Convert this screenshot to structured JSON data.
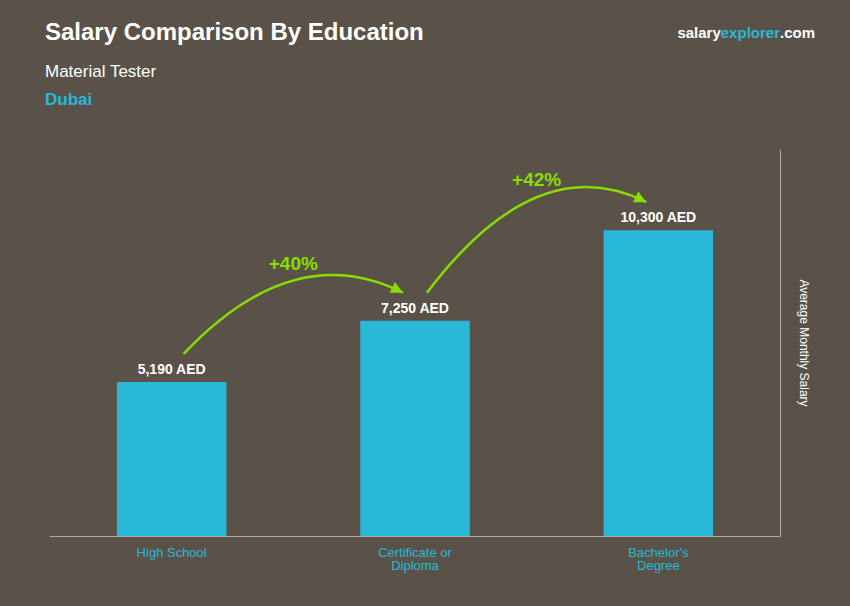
{
  "chart_data": {
    "type": "bar",
    "title": "Salary Comparison By Education",
    "subtitle": "Material Tester",
    "location": "Dubai",
    "brand": [
      {
        "text": "salary",
        "color": "#FFFFFF"
      },
      {
        "text": "explorer",
        "color": "#29B8D8"
      },
      {
        "text": ".com",
        "color": "#FFFFFF"
      }
    ],
    "categories": [
      "High School",
      "Certificate or\nDiploma",
      "Bachelor's\nDegree"
    ],
    "values": [
      5190,
      7250,
      10300
    ],
    "value_labels": [
      "5,190 AED",
      "7,250 AED",
      "10,300 AED"
    ],
    "data_labels": true,
    "color": "#29B8D8",
    "ylabel": "Average Monthly Salary",
    "ylim": [
      0,
      13000
    ],
    "tick_labels": "x",
    "grid": false,
    "annotations": [
      {
        "text": "+40%",
        "color": "#88DD00"
      },
      {
        "text": "+42%",
        "color": "#88DD00"
      }
    ],
    "background_color": "#5a5248"
  }
}
